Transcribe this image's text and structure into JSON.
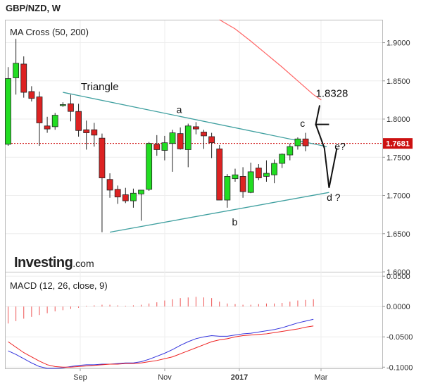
{
  "header": {
    "title": "GBP/NZD, W"
  },
  "brand": {
    "name": "Investing",
    "suffix": ".com"
  },
  "chart_data": [
    {
      "type": "candlestick",
      "title": "MA Cross (50, 200)",
      "x_ticks": [
        "Sep",
        "Nov",
        "2017",
        "Mar"
      ],
      "y_ticks": [
        "1.9000",
        "1.8500",
        "1.8000",
        "1.7500",
        "1.7000",
        "1.6500",
        "1.6000"
      ],
      "ylim": [
        1.6,
        1.93
      ],
      "current_price": 1.7681,
      "current_price_label": "1.7681",
      "candles": [
        {
          "o": 1.767,
          "h": 1.868,
          "l": 1.765,
          "c": 1.853
        },
        {
          "o": 1.854,
          "h": 1.905,
          "l": 1.832,
          "c": 1.873
        },
        {
          "o": 1.872,
          "h": 1.882,
          "l": 1.828,
          "c": 1.835
        },
        {
          "o": 1.836,
          "h": 1.843,
          "l": 1.823,
          "c": 1.827
        },
        {
          "o": 1.829,
          "h": 1.836,
          "l": 1.765,
          "c": 1.795
        },
        {
          "o": 1.791,
          "h": 1.803,
          "l": 1.782,
          "c": 1.787
        },
        {
          "o": 1.79,
          "h": 1.808,
          "l": 1.786,
          "c": 1.805
        },
        {
          "o": 1.819,
          "h": 1.822,
          "l": 1.816,
          "c": 1.819
        },
        {
          "o": 1.82,
          "h": 1.832,
          "l": 1.797,
          "c": 1.81
        },
        {
          "o": 1.81,
          "h": 1.82,
          "l": 1.777,
          "c": 1.785
        },
        {
          "o": 1.786,
          "h": 1.798,
          "l": 1.76,
          "c": 1.782
        },
        {
          "o": 1.786,
          "h": 1.795,
          "l": 1.764,
          "c": 1.779
        },
        {
          "o": 1.775,
          "h": 1.781,
          "l": 1.652,
          "c": 1.723
        },
        {
          "o": 1.721,
          "h": 1.729,
          "l": 1.697,
          "c": 1.707
        },
        {
          "o": 1.708,
          "h": 1.713,
          "l": 1.689,
          "c": 1.698
        },
        {
          "o": 1.701,
          "h": 1.71,
          "l": 1.69,
          "c": 1.693
        },
        {
          "o": 1.693,
          "h": 1.709,
          "l": 1.684,
          "c": 1.703
        },
        {
          "o": 1.702,
          "h": 1.707,
          "l": 1.667,
          "c": 1.707
        },
        {
          "o": 1.708,
          "h": 1.77,
          "l": 1.706,
          "c": 1.768
        },
        {
          "o": 1.767,
          "h": 1.779,
          "l": 1.752,
          "c": 1.76
        },
        {
          "o": 1.759,
          "h": 1.778,
          "l": 1.746,
          "c": 1.769
        },
        {
          "o": 1.768,
          "h": 1.786,
          "l": 1.731,
          "c": 1.782
        },
        {
          "o": 1.781,
          "h": 1.789,
          "l": 1.76,
          "c": 1.761
        },
        {
          "o": 1.76,
          "h": 1.794,
          "l": 1.737,
          "c": 1.791
        },
        {
          "o": 1.79,
          "h": 1.796,
          "l": 1.78,
          "c": 1.787
        },
        {
          "o": 1.783,
          "h": 1.786,
          "l": 1.761,
          "c": 1.778
        },
        {
          "o": 1.777,
          "h": 1.782,
          "l": 1.749,
          "c": 1.769
        },
        {
          "o": 1.761,
          "h": 1.766,
          "l": 1.696,
          "c": 1.694
        },
        {
          "o": 1.694,
          "h": 1.728,
          "l": 1.684,
          "c": 1.725
        },
        {
          "o": 1.722,
          "h": 1.735,
          "l": 1.718,
          "c": 1.727
        },
        {
          "o": 1.725,
          "h": 1.737,
          "l": 1.697,
          "c": 1.705
        },
        {
          "o": 1.704,
          "h": 1.743,
          "l": 1.703,
          "c": 1.731
        },
        {
          "o": 1.736,
          "h": 1.741,
          "l": 1.72,
          "c": 1.723
        },
        {
          "o": 1.725,
          "h": 1.746,
          "l": 1.718,
          "c": 1.729
        },
        {
          "o": 1.727,
          "h": 1.747,
          "l": 1.716,
          "c": 1.742
        },
        {
          "o": 1.742,
          "h": 1.755,
          "l": 1.736,
          "c": 1.754
        },
        {
          "o": 1.753,
          "h": 1.768,
          "l": 1.746,
          "c": 1.764
        },
        {
          "o": 1.765,
          "h": 1.776,
          "l": 1.76,
          "c": 1.774
        },
        {
          "o": 1.774,
          "h": 1.782,
          "l": 1.758,
          "c": 1.765
        }
      ],
      "ma200": [
        {
          "i": 27,
          "v": 1.93
        },
        {
          "i": 29,
          "v": 1.918
        },
        {
          "i": 31,
          "v": 1.902
        },
        {
          "i": 33,
          "v": 1.885
        },
        {
          "i": 35,
          "v": 1.868
        },
        {
          "i": 37,
          "v": 1.85
        },
        {
          "i": 39,
          "v": 1.832
        },
        {
          "i": 40,
          "v": 1.825
        }
      ],
      "triangle": {
        "upper": [
          {
            "i": 7,
            "v": 1.835
          },
          {
            "i": 40.7,
            "v": 1.764
          }
        ],
        "lower": [
          {
            "i": 13,
            "v": 1.652
          },
          {
            "i": 41,
            "v": 1.704
          }
        ]
      },
      "projection": [
        {
          "i": 39.3,
          "v": 1.793
        },
        {
          "i": 41,
          "v": 1.793
        },
        {
          "i": 39.3,
          "v": 1.793
        },
        {
          "i": 39.8,
          "v": 1.818
        },
        {
          "i": 39.3,
          "v": 1.793
        },
        {
          "i": 40.4,
          "v": 1.762
        },
        {
          "i": 41,
          "v": 1.71
        },
        {
          "i": 42,
          "v": 1.762
        }
      ],
      "annotations": [
        {
          "text": "Triangle",
          "i": 9.3,
          "v": 1.838
        },
        {
          "text": "a",
          "i": 21.5,
          "v": 1.808
        },
        {
          "text": "b",
          "i": 28.6,
          "v": 1.661
        },
        {
          "text": "c",
          "i": 37.3,
          "v": 1.79
        },
        {
          "text": "1.8328",
          "i": 39.3,
          "v": 1.829
        },
        {
          "text": "e?",
          "i": 41.7,
          "v": 1.76
        },
        {
          "text": "d ?",
          "i": 40.7,
          "v": 1.693
        }
      ]
    },
    {
      "type": "line",
      "title": "MACD (12, 26, close, 9)",
      "y_ticks": [
        "0.0500",
        "0.0000",
        "-0.0500",
        "-0.1000"
      ],
      "ylim": [
        -0.102,
        0.056
      ],
      "series": [
        {
          "values": [
            -0.073,
            -0.079,
            -0.086,
            -0.093,
            -0.099,
            -0.102,
            -0.102,
            -0.101,
            -0.099,
            -0.097,
            -0.096,
            -0.096,
            -0.095,
            -0.095,
            -0.094,
            -0.093,
            -0.093,
            -0.091,
            -0.087,
            -0.082,
            -0.077,
            -0.071,
            -0.064,
            -0.058,
            -0.053,
            -0.05,
            -0.048,
            -0.049,
            -0.049,
            -0.047,
            -0.045,
            -0.044,
            -0.042,
            -0.04,
            -0.038,
            -0.035,
            -0.031,
            -0.027,
            -0.024,
            -0.021
          ]
        },
        {
          "values": [
            -0.058,
            -0.067,
            -0.076,
            -0.083,
            -0.09,
            -0.096,
            -0.099,
            -0.1,
            -0.1,
            -0.099,
            -0.098,
            -0.097,
            -0.096,
            -0.095,
            -0.095,
            -0.094,
            -0.094,
            -0.093,
            -0.091,
            -0.089,
            -0.086,
            -0.083,
            -0.078,
            -0.073,
            -0.068,
            -0.063,
            -0.058,
            -0.055,
            -0.053,
            -0.05,
            -0.048,
            -0.047,
            -0.046,
            -0.045,
            -0.043,
            -0.041,
            -0.039,
            -0.037,
            -0.034,
            -0.032
          ]
        }
      ],
      "histogram": [
        -0.028,
        -0.024,
        -0.02,
        -0.017,
        -0.014,
        -0.011,
        -0.008,
        -0.006,
        -0.004,
        -0.002,
        0.001,
        0.002,
        0.003,
        0.003,
        0.002,
        0.001,
        0.002,
        0.003,
        0.005,
        0.007,
        0.01,
        0.012,
        0.014,
        0.015,
        0.016,
        0.015,
        0.014,
        0.008,
        0.005,
        0.004,
        0.003,
        0.003,
        0.004,
        0.005,
        0.005,
        0.006,
        0.008,
        0.01,
        0.011,
        0.012
      ]
    }
  ],
  "colors": {
    "up": "#22dd22",
    "down": "#dd2222",
    "outline": "#222222",
    "triangle": "#40a0a0",
    "ma200": "#ff6666",
    "macd": "#3333dd",
    "signal": "#ee2222",
    "histogram": "#ee5555",
    "price_line": "#cc0000",
    "grid": "#eeeeee"
  }
}
